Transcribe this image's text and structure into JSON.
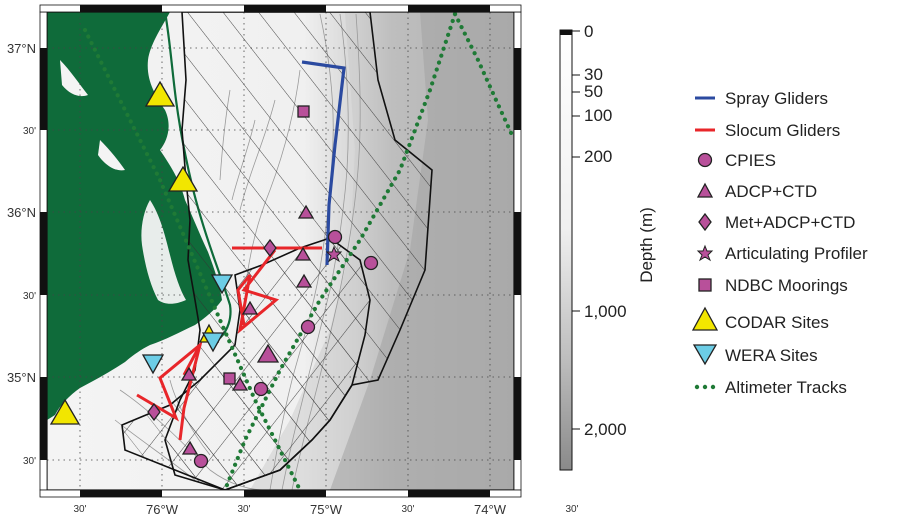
{
  "map": {
    "lat_labels": [
      "37°N",
      "30'",
      "36°N",
      "30'",
      "35°N",
      "30'"
    ],
    "lon_labels": [
      "30'",
      "76°W",
      "30'",
      "75°W",
      "30'",
      "74°W",
      "30'"
    ]
  },
  "depth_scale": {
    "title": "Depth (m)",
    "ticks": [
      "0",
      "30",
      "50",
      "100",
      "200",
      "1,000",
      "2,000"
    ]
  },
  "legend": {
    "items": [
      {
        "label": "Spray Gliders",
        "symbol": "line",
        "color": "#2b4aa0"
      },
      {
        "label": "Slocum Gliders",
        "symbol": "line",
        "color": "#e8262a"
      },
      {
        "label": "CPIES",
        "symbol": "circle",
        "color": "#b8509a"
      },
      {
        "label": "ADCP+CTD",
        "symbol": "triangle",
        "color": "#b8509a"
      },
      {
        "label": "Met+ADCP+CTD",
        "symbol": "diamond",
        "color": "#b8509a"
      },
      {
        "label": "Articulating Profiler",
        "symbol": "star",
        "color": "#b8509a"
      },
      {
        "label": "NDBC Moorings",
        "symbol": "square",
        "color": "#b8509a"
      },
      {
        "label": "CODAR Sites",
        "symbol": "big-triangle",
        "color": "#f2e600"
      },
      {
        "label": "WERA Sites",
        "symbol": "inverted-triangle",
        "color": "#6ccde6"
      },
      {
        "label": "Altimeter Tracks",
        "symbol": "dots",
        "color": "#1f7a36"
      }
    ]
  },
  "colors": {
    "land": "#0f6b3a",
    "altimeter": "#1f7a36",
    "platform": "#b8509a",
    "spray": "#2b4aa0",
    "slocum": "#e8262a",
    "codar": "#f2e600",
    "wera": "#6ccde6"
  }
}
